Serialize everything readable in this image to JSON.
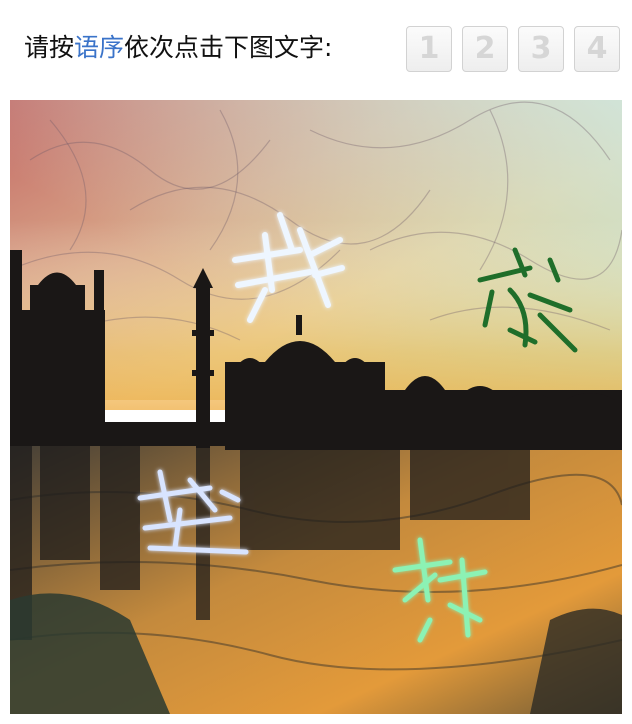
{
  "prompt": {
    "prefix": "请按",
    "highlight": "语序",
    "suffix": "依次点击下图文字:"
  },
  "slots": [
    "1",
    "2",
    "3",
    "4"
  ],
  "captcha": {
    "characters": [
      {
        "name": "char-1",
        "color": "#eef6ff"
      },
      {
        "name": "char-2",
        "color": "#1f6e2a"
      },
      {
        "name": "char-3",
        "color": "#d8e4ff"
      },
      {
        "name": "char-4",
        "color": "#8cf2b4"
      }
    ]
  }
}
